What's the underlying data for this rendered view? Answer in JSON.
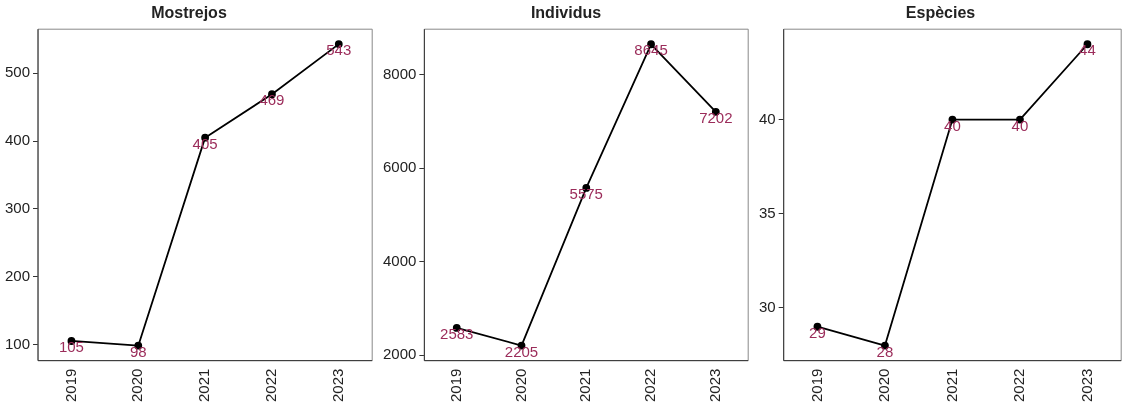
{
  "chart_data": [
    {
      "type": "line",
      "title": "Mostrejos",
      "categories": [
        "2019",
        "2020",
        "2021",
        "2022",
        "2023"
      ],
      "values": [
        105,
        98,
        405,
        469,
        543
      ],
      "color": "#000000",
      "ylim": [
        76,
        565
      ],
      "yticks": [
        100,
        200,
        300,
        400,
        500
      ],
      "data_labels": true,
      "marker": "circle",
      "grid": false,
      "legend": false
    },
    {
      "type": "line",
      "title": "Individus",
      "categories": [
        "2019",
        "2020",
        "2021",
        "2022",
        "2023"
      ],
      "values": [
        2583,
        2205,
        5575,
        8645,
        7202
      ],
      "color": "#000000",
      "ylim": [
        1883,
        8967
      ],
      "yticks": [
        2000,
        4000,
        6000,
        8000
      ],
      "data_labels": true,
      "marker": "circle",
      "grid": false,
      "legend": false
    },
    {
      "type": "line",
      "title": "Espècies",
      "categories": [
        "2019",
        "2020",
        "2021",
        "2022",
        "2023"
      ],
      "values": [
        29,
        28,
        40,
        40,
        44
      ],
      "color": "#000000",
      "ylim": [
        27.2,
        44.8
      ],
      "yticks": [
        30,
        35,
        40
      ],
      "data_labels": true,
      "marker": "circle",
      "grid": false,
      "legend": false
    }
  ]
}
